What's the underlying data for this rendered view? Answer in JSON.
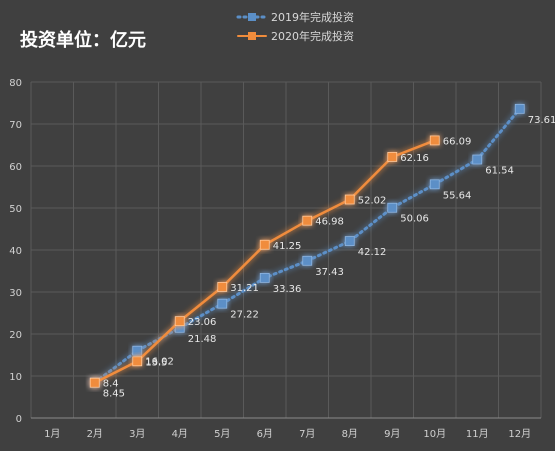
{
  "chart_data": {
    "type": "line",
    "title": "投资单位：亿元",
    "categories": [
      "1月",
      "2月",
      "3月",
      "4月",
      "5月",
      "6月",
      "7月",
      "8月",
      "9月",
      "10月",
      "11月",
      "12月"
    ],
    "ylim": [
      0,
      80
    ],
    "yticks": [
      0,
      10,
      20,
      30,
      40,
      50,
      60,
      70,
      80
    ],
    "grid": true,
    "legend_position": "top-center",
    "series": [
      {
        "name": "2019年完成投资",
        "color": "#5b8fc7",
        "style": "dotted",
        "values": [
          null,
          8.45,
          16.02,
          21.48,
          27.22,
          33.36,
          37.43,
          42.12,
          50.06,
          55.64,
          61.54,
          73.61
        ],
        "labels": [
          null,
          "8.45",
          "16.02",
          "21.48",
          "27.22",
          "33.36",
          "37.43",
          "42.12",
          "50.06",
          "55.64",
          "61.54",
          "73.61"
        ]
      },
      {
        "name": "2020年完成投资",
        "color": "#f08c3c",
        "style": "solid",
        "values": [
          null,
          8.4,
          13.5,
          23.06,
          31.21,
          41.25,
          46.98,
          52.02,
          62.16,
          66.09,
          null,
          null
        ],
        "labels": [
          null,
          "8.4",
          "13.5",
          "23.06",
          "31.21",
          "41.25",
          "46.98",
          "52.02",
          "62.16",
          "66.09",
          null,
          null
        ]
      }
    ]
  }
}
